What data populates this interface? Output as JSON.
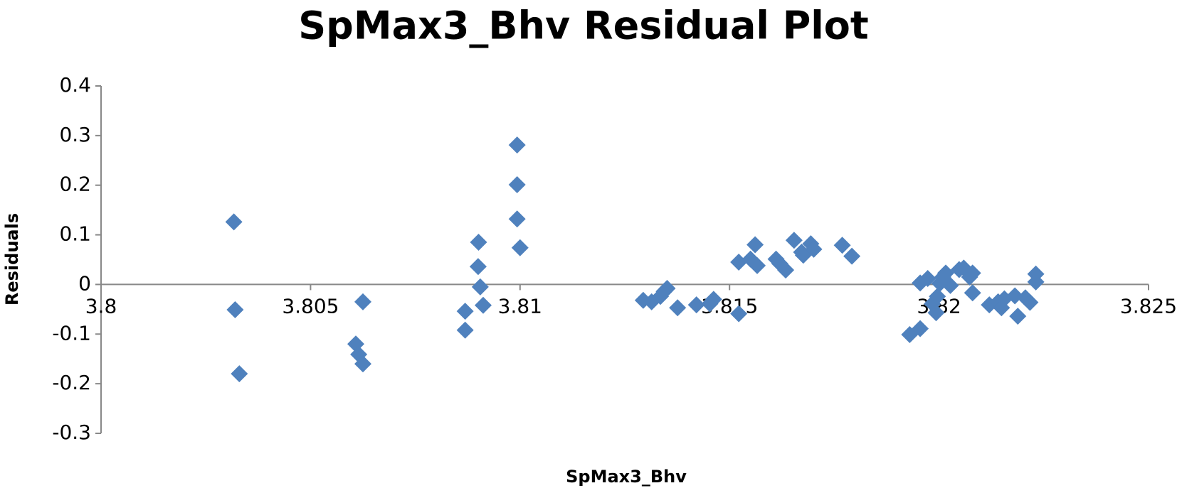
{
  "chart_data": {
    "type": "scatter",
    "title": "SpMax3_Bhv  Residual Plot",
    "x_label": "SpMax3_Bhv",
    "y_label": "Residuals",
    "xlim": [
      3.8,
      3.825
    ],
    "xticks": [
      3.8,
      3.805,
      3.81,
      3.815,
      3.82,
      3.825
    ],
    "ylim": [
      -0.3,
      0.4
    ],
    "yticks": [
      0.4,
      0.3,
      0.2,
      0.1,
      0,
      -0.1,
      -0.2,
      -0.3
    ],
    "color": "#4f81bd",
    "x": [
      3.80317,
      3.8032,
      3.8033,
      3.80625,
      3.80608,
      3.80615,
      3.80625,
      3.80869,
      3.80869,
      3.80901,
      3.809,
      3.80905,
      3.80912,
      3.80993,
      3.80993,
      3.80993,
      3.81,
      3.81294,
      3.81314,
      3.81335,
      3.81344,
      3.81351,
      3.81376,
      3.81421,
      3.81453,
      3.81462,
      3.81522,
      3.81522,
      3.8155,
      3.81561,
      3.81566,
      3.81611,
      3.8162,
      3.81634,
      3.81654,
      3.81672,
      3.81676,
      3.81694,
      3.81701,
      3.81769,
      3.81792,
      3.8193,
      3.81955,
      3.81955,
      3.81973,
      3.81984,
      3.81993,
      3.81996,
      3.82002,
      3.82009,
      3.82016,
      3.82027,
      3.82048,
      3.82059,
      3.82073,
      3.8208,
      3.8208,
      3.8212,
      3.82141,
      3.82149,
      3.82156,
      3.82181,
      3.82188,
      3.82206,
      3.82217,
      3.82231,
      3.82231
    ],
    "values": [
      0.126,
      -0.051,
      -0.18,
      -0.035,
      -0.12,
      -0.141,
      -0.16,
      -0.054,
      -0.092,
      0.085,
      0.036,
      -0.005,
      -0.042,
      0.281,
      0.201,
      0.132,
      0.074,
      -0.032,
      -0.035,
      -0.024,
      -0.014,
      -0.008,
      -0.047,
      -0.041,
      -0.039,
      -0.03,
      -0.059,
      0.045,
      0.051,
      0.08,
      0.038,
      0.051,
      0.042,
      0.029,
      0.089,
      0.065,
      0.059,
      0.082,
      0.071,
      0.079,
      0.057,
      -0.101,
      -0.089,
      0.003,
      0.012,
      -0.039,
      -0.057,
      -0.024,
      0.002,
      0.015,
      0.023,
      -0.002,
      0.03,
      0.033,
      0.015,
      0.023,
      -0.017,
      -0.041,
      -0.035,
      -0.047,
      -0.029,
      -0.023,
      -0.064,
      -0.027,
      -0.036,
      0.005,
      0.021
    ]
  }
}
